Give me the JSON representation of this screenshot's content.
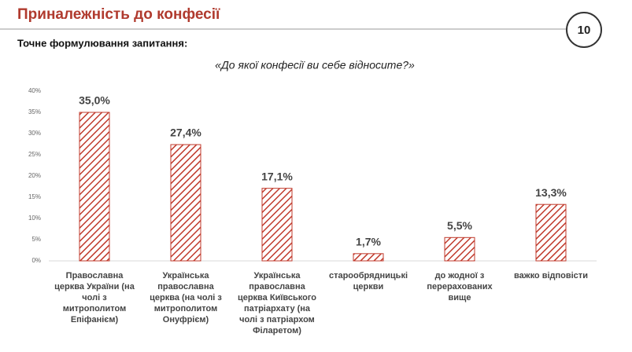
{
  "header": {
    "title": "Приналежність до конфесії",
    "page_number": "10"
  },
  "question_intro": "Точне формулювання запитання:",
  "question": "«До якої конфесії ви себе відносите?»",
  "chart_data": {
    "type": "bar",
    "categories": [
      "Православна церква України (на чолі з митрополитом Епіфанієм)",
      "Українська православна церква (на чолі з митрополитом Онуфрієм)",
      "Українська православна церква Київського патріархату (на чолі з патріархом Філаретом)",
      "старообрядницькі церкви",
      "до жодної з перерахованих вище",
      "важко відповісти"
    ],
    "values": [
      35.0,
      27.4,
      17.1,
      1.7,
      5.5,
      13.3
    ],
    "value_labels": [
      "35,0%",
      "27,4%",
      "17,1%",
      "1,7%",
      "5,5%",
      "13,3%"
    ],
    "color": "#c0392b",
    "ylim": [
      0,
      40
    ],
    "yticks": [
      {
        "value": 0,
        "label": "0%"
      },
      {
        "value": 5,
        "label": "5%"
      },
      {
        "value": 10,
        "label": "10%"
      },
      {
        "value": 15,
        "label": "15%"
      },
      {
        "value": 20,
        "label": "20%"
      },
      {
        "value": 25,
        "label": "25%"
      },
      {
        "value": 30,
        "label": "30%"
      },
      {
        "value": 35,
        "label": "35%"
      },
      {
        "value": 40,
        "label": "40%"
      }
    ],
    "grid": false
  }
}
